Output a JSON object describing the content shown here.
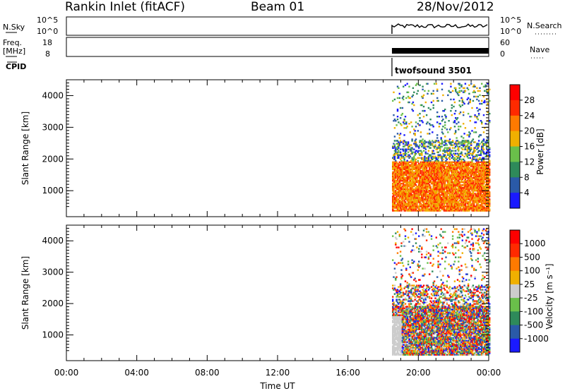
{
  "header": {
    "station": "Rankin Inlet (fitACF)",
    "beam": "Beam 01",
    "date": "28/Nov/2012"
  },
  "top_panels": {
    "nsky_label": "N.Sky",
    "nsky_ticks": [
      "10^5",
      "10^0"
    ],
    "nsearch_label": "N.Search",
    "freq_label": "Freq.",
    "freq_unit": "[MHz]",
    "freq_ticks": [
      "18",
      "8"
    ],
    "nave_label": "Nave",
    "nave_ticks": [
      "60",
      "0"
    ],
    "cpid_label": "CPID",
    "cpid_value": "twofsound 3501"
  },
  "chart_data": [
    {
      "type": "heatmap",
      "parameter": "power",
      "ylabel": "Slant Range [km]",
      "xlabel": "",
      "y_ticks": [
        "1000",
        "2000",
        "3000",
        "4000"
      ],
      "ylim": [
        180,
        4500
      ],
      "data_start": "18:30",
      "data_end": "24:00",
      "colorbar": {
        "label": "Power [dB]",
        "ticks": [
          "4",
          "8",
          "12",
          "16",
          "20",
          "24",
          "28"
        ],
        "colors": [
          "#1a1aff",
          "#2a5aa8",
          "#2e8a5a",
          "#6ac04a",
          "#f0b000",
          "#ff7a00",
          "#ff2a00",
          "#ff0000"
        ]
      }
    },
    {
      "type": "heatmap",
      "parameter": "velocity",
      "ylabel": "Slant Range [km]",
      "xlabel": "Time UT",
      "x_ticks": [
        "00:00",
        "04:00",
        "08:00",
        "12:00",
        "16:00",
        "20:00",
        "00:00"
      ],
      "y_ticks": [
        "1000",
        "2000",
        "3000",
        "4000"
      ],
      "ylim": [
        180,
        4500
      ],
      "data_start": "18:30",
      "data_end": "24:00",
      "colorbar": {
        "label": "Velocity [m s⁻¹]",
        "ticks": [
          "1000",
          "500",
          "100",
          "25",
          "-25",
          "-100",
          "-500",
          "-1000"
        ],
        "colors": [
          "#1a1aff",
          "#2a5aa8",
          "#2e8a5a",
          "#6ac04a",
          "#cccccc",
          "#f0b000",
          "#ff7a00",
          "#ff2a00",
          "#ff0000"
        ]
      }
    }
  ]
}
